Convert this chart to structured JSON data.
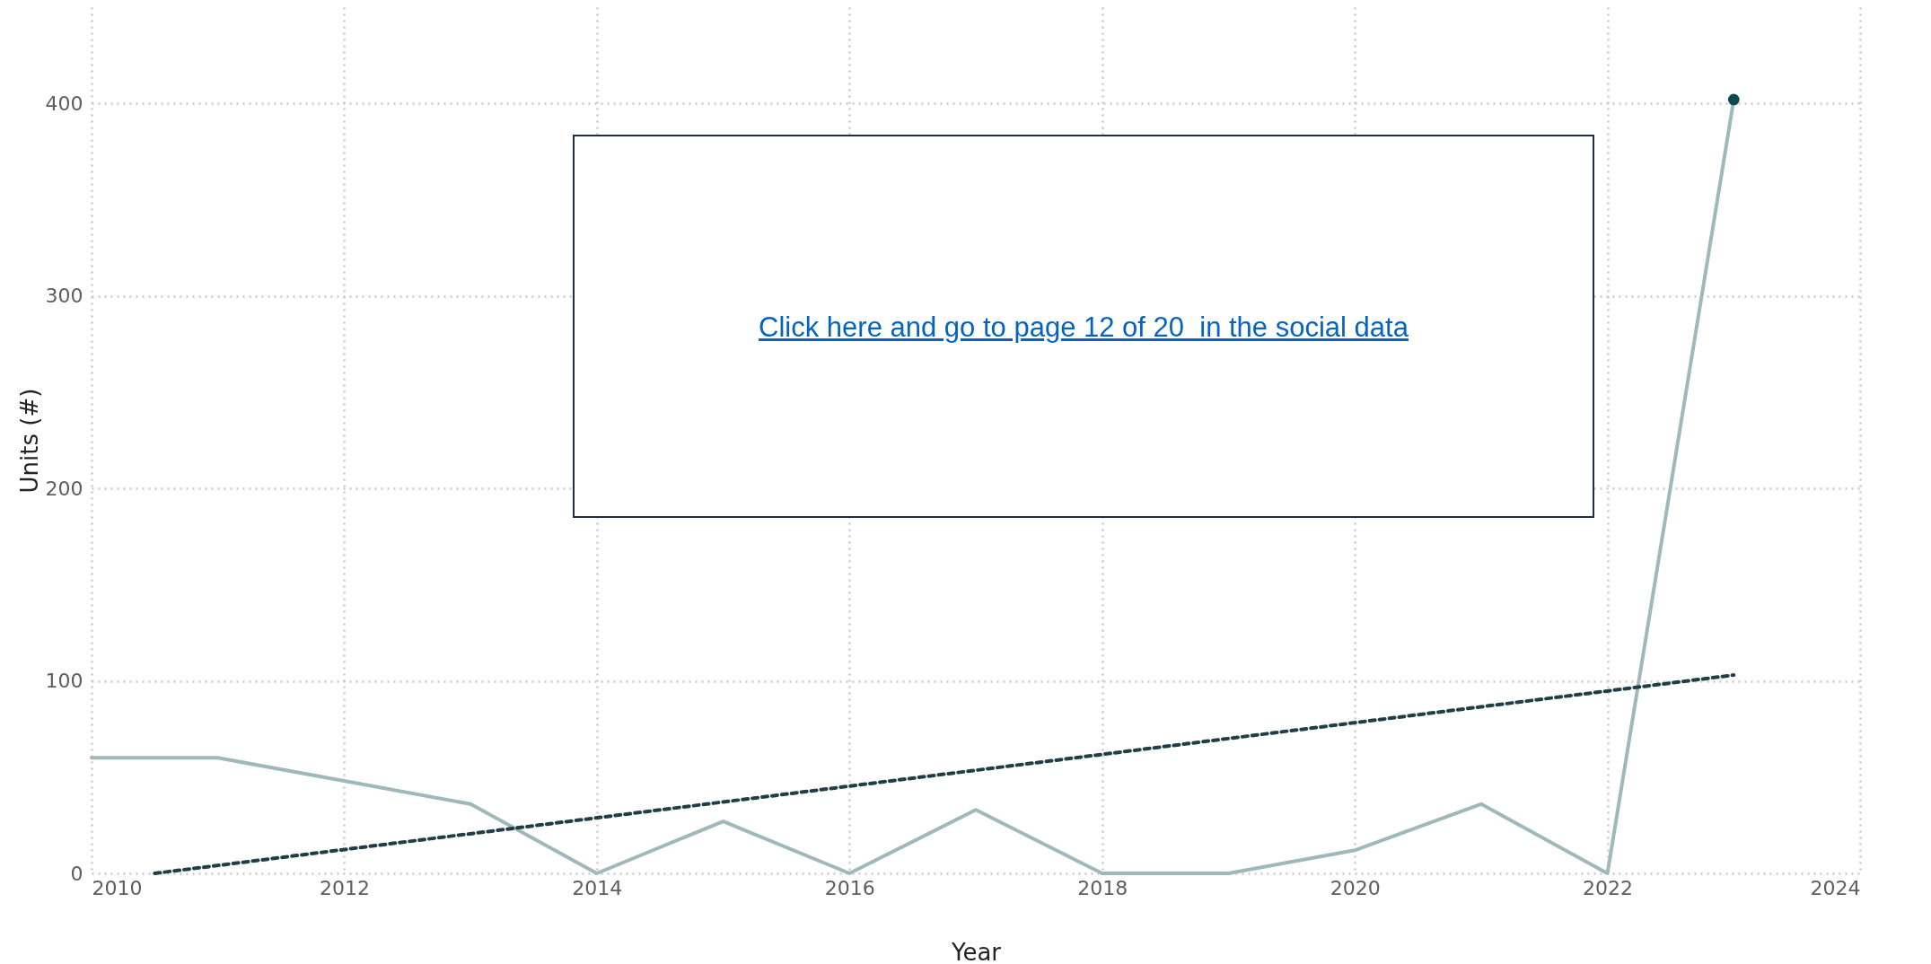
{
  "chart_data": {
    "type": "line",
    "xlabel": "Year",
    "ylabel": "Units (#)",
    "x": [
      2010,
      2011,
      2012,
      2013,
      2014,
      2015,
      2016,
      2017,
      2018,
      2019,
      2020,
      2021,
      2022,
      2023
    ],
    "series": [
      {
        "color": "#9fb8ba",
        "values": [
          60,
          60,
          48,
          36,
          0,
          27,
          0,
          33,
          0,
          0,
          12,
          36,
          0,
          402
        ]
      },
      {
        "type": "scatter",
        "color": "#0b4a50",
        "values": [
          null,
          null,
          null,
          null,
          null,
          null,
          null,
          null,
          null,
          null,
          null,
          null,
          null,
          402
        ],
        "marker": "circle"
      },
      {
        "color": "#1f3f44",
        "line_style": "dashed",
        "x": [
          2010.5,
          2023
        ],
        "values": [
          0,
          103
        ]
      }
    ],
    "xlim": [
      2010,
      2024
    ],
    "xticks": [
      2010,
      2012,
      2014,
      2016,
      2018,
      2020,
      2022,
      2024
    ],
    "ylim": [
      0,
      450
    ],
    "yticks": [
      0,
      100,
      200,
      300,
      400
    ],
    "grid": true,
    "annotations": [
      "Click here and go to page 12 of 20  in the social data"
    ]
  }
}
